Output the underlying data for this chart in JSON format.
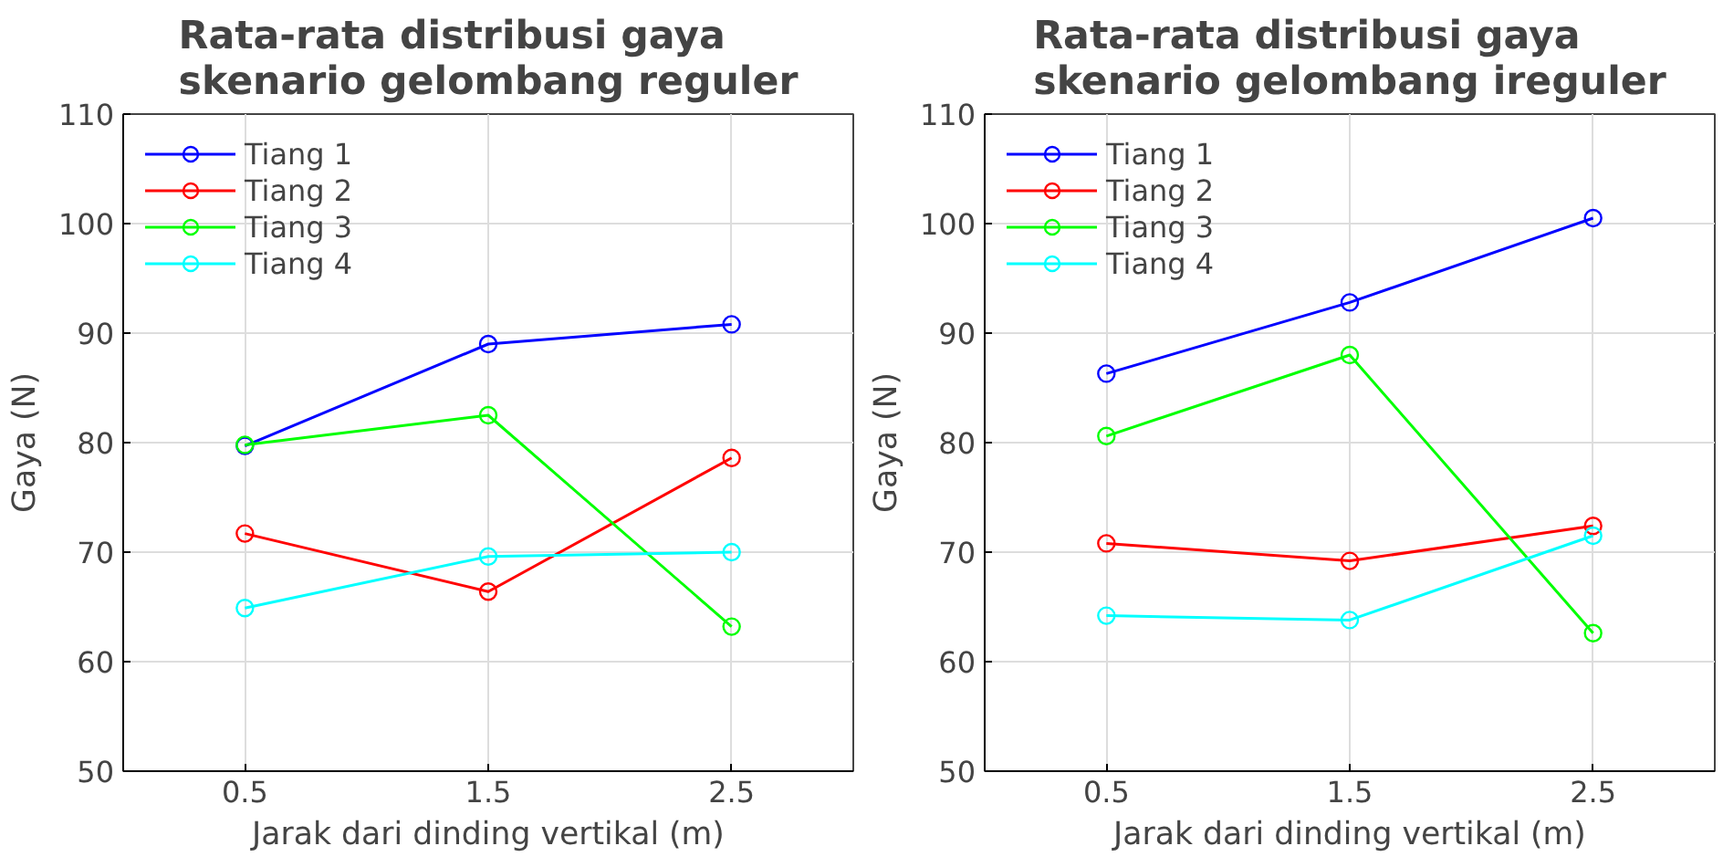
{
  "chart_data": [
    {
      "type": "line",
      "title": "Rata-rata distribusi gaya\nskenario gelombang reguler",
      "xlabel": "Jarak dari dinding vertikal (m)",
      "ylabel": "Gaya (N)",
      "x": [
        0.5,
        1.5,
        2.5
      ],
      "xlim": [
        0,
        3
      ],
      "xticks": [
        0.5,
        1.5,
        2.5
      ],
      "ylim": [
        50,
        110
      ],
      "yticks": [
        50,
        60,
        70,
        80,
        90,
        100,
        110
      ],
      "grid": true,
      "legend": "top left",
      "marker": "circle",
      "line_style": "solid",
      "series": [
        {
          "name": "Tiang 1",
          "color": "#0000ff",
          "values": [
            79.7,
            89.0,
            90.8
          ]
        },
        {
          "name": "Tiang 2",
          "color": "#ff0000",
          "values": [
            71.7,
            66.4,
            78.6
          ]
        },
        {
          "name": "Tiang 3",
          "color": "#00ff00",
          "values": [
            79.8,
            82.5,
            63.2
          ]
        },
        {
          "name": "Tiang 4",
          "color": "#00ffff",
          "values": [
            64.9,
            69.6,
            70.0
          ]
        }
      ]
    },
    {
      "type": "line",
      "title": "Rata-rata distribusi gaya\nskenario gelombang ireguler",
      "xlabel": "Jarak dari dinding vertikal (m)",
      "ylabel": "Gaya (N)",
      "x": [
        0.5,
        1.5,
        2.5
      ],
      "xlim": [
        0,
        3
      ],
      "xticks": [
        0.5,
        1.5,
        2.5
      ],
      "ylim": [
        50,
        110
      ],
      "yticks": [
        50,
        60,
        70,
        80,
        90,
        100,
        110
      ],
      "grid": true,
      "legend": "top left",
      "marker": "circle",
      "line_style": "solid",
      "series": [
        {
          "name": "Tiang 1",
          "color": "#0000ff",
          "values": [
            86.3,
            92.8,
            100.5
          ]
        },
        {
          "name": "Tiang 2",
          "color": "#ff0000",
          "values": [
            70.8,
            69.2,
            72.4
          ]
        },
        {
          "name": "Tiang 3",
          "color": "#00ff00",
          "values": [
            80.6,
            88.0,
            62.6
          ]
        },
        {
          "name": "Tiang 4",
          "color": "#00ffff",
          "values": [
            64.2,
            63.8,
            71.5
          ]
        }
      ]
    }
  ]
}
